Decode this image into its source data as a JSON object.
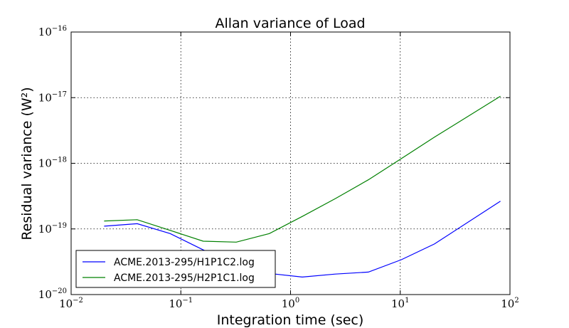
{
  "chart_data": {
    "type": "line",
    "title": "Allan variance of Load",
    "xlabel": "Integration time (sec)",
    "ylabel": "Residual variance (W²)",
    "xscale": "log",
    "yscale": "log",
    "xlim": [
      0.01,
      100
    ],
    "ylim": [
      1e-20,
      1e-16
    ],
    "grid": true,
    "legend_position": "lower-left",
    "x_ticks": [
      {
        "base": "10",
        "exp": "−2",
        "value": 0.01
      },
      {
        "base": "10",
        "exp": "−1",
        "value": 0.1
      },
      {
        "base": "10",
        "exp": "0",
        "value": 1
      },
      {
        "base": "10",
        "exp": "1",
        "value": 10
      },
      {
        "base": "10",
        "exp": "2",
        "value": 100
      }
    ],
    "y_ticks": [
      {
        "base": "10",
        "exp": "−20",
        "value": 1e-20
      },
      {
        "base": "10",
        "exp": "−19",
        "value": 1e-19
      },
      {
        "base": "10",
        "exp": "−18",
        "value": 1e-18
      },
      {
        "base": "10",
        "exp": "−17",
        "value": 1e-17
      },
      {
        "base": "10",
        "exp": "−16",
        "value": 1e-16
      }
    ],
    "series": [
      {
        "name": "ACME.2013-295/H1P1C2.log",
        "color": "#0000ff",
        "x": [
          0.02,
          0.04,
          0.08,
          0.16,
          0.32,
          0.64,
          1.28,
          2.56,
          5.12,
          10.24,
          20.48,
          81.92
        ],
        "y": [
          1.1e-19,
          1.2e-19,
          8.5e-20,
          4.8e-20,
          2.8e-20,
          2.1e-20,
          1.85e-20,
          2.05e-20,
          2.2e-20,
          3.4e-20,
          5.9e-20,
          2.65e-19
        ]
      },
      {
        "name": "ACME.2013-295/H2P1C1.log",
        "color": "#008000",
        "x": [
          0.02,
          0.04,
          0.08,
          0.16,
          0.32,
          0.64,
          1.28,
          2.56,
          5.12,
          10.24,
          20.48,
          81.92
        ],
        "y": [
          1.32e-19,
          1.38e-19,
          9.5e-20,
          6.5e-20,
          6.3e-20,
          8.5e-20,
          1.55e-19,
          2.9e-19,
          5.6e-19,
          1.18e-18,
          2.5e-18,
          1.05e-17
        ]
      }
    ]
  }
}
